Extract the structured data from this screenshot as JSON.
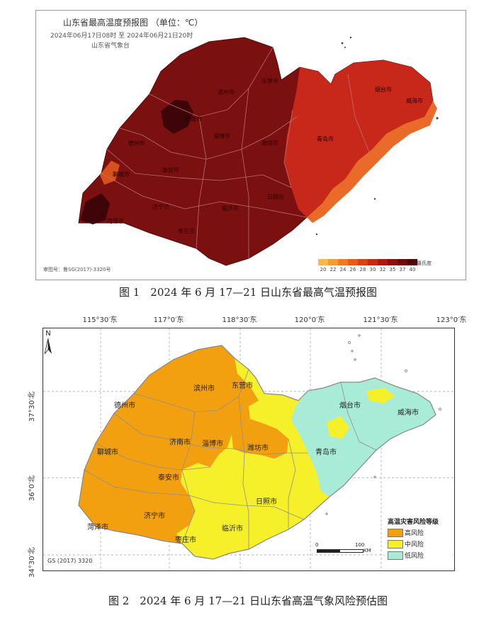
{
  "figure1": {
    "title": "山东省最高温度预报图 （单位：℃）",
    "time_range": "2024年06月17日08时  至  2024年06月21日20时",
    "issuer": "山东省气象台",
    "approval_no": "审图号：鲁SG(2017)-3320号",
    "legend": {
      "unit": "摄氏度",
      "items": [
        {
          "label": "20",
          "color": "#f7b84c"
        },
        {
          "label": "22",
          "color": "#f59a3a"
        },
        {
          "label": "24",
          "color": "#ef7a2c"
        },
        {
          "label": "26",
          "color": "#e65a22"
        },
        {
          "label": "28",
          "color": "#d8401c"
        },
        {
          "label": "30",
          "color": "#c52a16"
        },
        {
          "label": "32",
          "color": "#ab1a12"
        },
        {
          "label": "35",
          "color": "#8b1010"
        },
        {
          "label": "37",
          "color": "#6e0a0c"
        },
        {
          "label": "40",
          "color": "#4c0508"
        }
      ]
    },
    "cities": [
      "德州市",
      "滨州市",
      "东营市",
      "烟台市",
      "威海市",
      "济南市",
      "淄博市",
      "潍坊市",
      "聊城市",
      "泰安市",
      "青岛市",
      "日照市",
      "济宁市",
      "临沂市",
      "菏泽市",
      "枣庄市"
    ]
  },
  "caption1": "图 1　2024 年 6 月 17—21 日山东省最高气温预报图",
  "figure2": {
    "lon_labels": [
      "115°30′东",
      "117°0′东",
      "118°30′东",
      "120°0′东",
      "121°30′东",
      "123°0′东"
    ],
    "lat_labels": [
      "37°30′北",
      "36°0′北",
      "34°30′北"
    ],
    "cities": [
      "德州市",
      "滨州市",
      "东营市",
      "烟台市",
      "威海市",
      "聊城市",
      "济南市",
      "淄博市",
      "潍坊市",
      "青岛市",
      "泰安市",
      "日照市",
      "济宁市",
      "菏泽市",
      "临沂市",
      "枣庄市"
    ],
    "legend": {
      "title": "高温灾害风险等级",
      "items": [
        {
          "label": "高风险",
          "color": "#f2a010"
        },
        {
          "label": "中风险",
          "color": "#f5f02a"
        },
        {
          "label": "低风险",
          "color": "#a8ecd8"
        }
      ]
    },
    "scale": {
      "zero": "0",
      "hundred": "100",
      "unit": "KM"
    },
    "north": "N",
    "gs_no": "GS (2017) 3320"
  },
  "caption2": "图 2　2024 年 6 月 17—21 日山东省高温气象风险预估图"
}
